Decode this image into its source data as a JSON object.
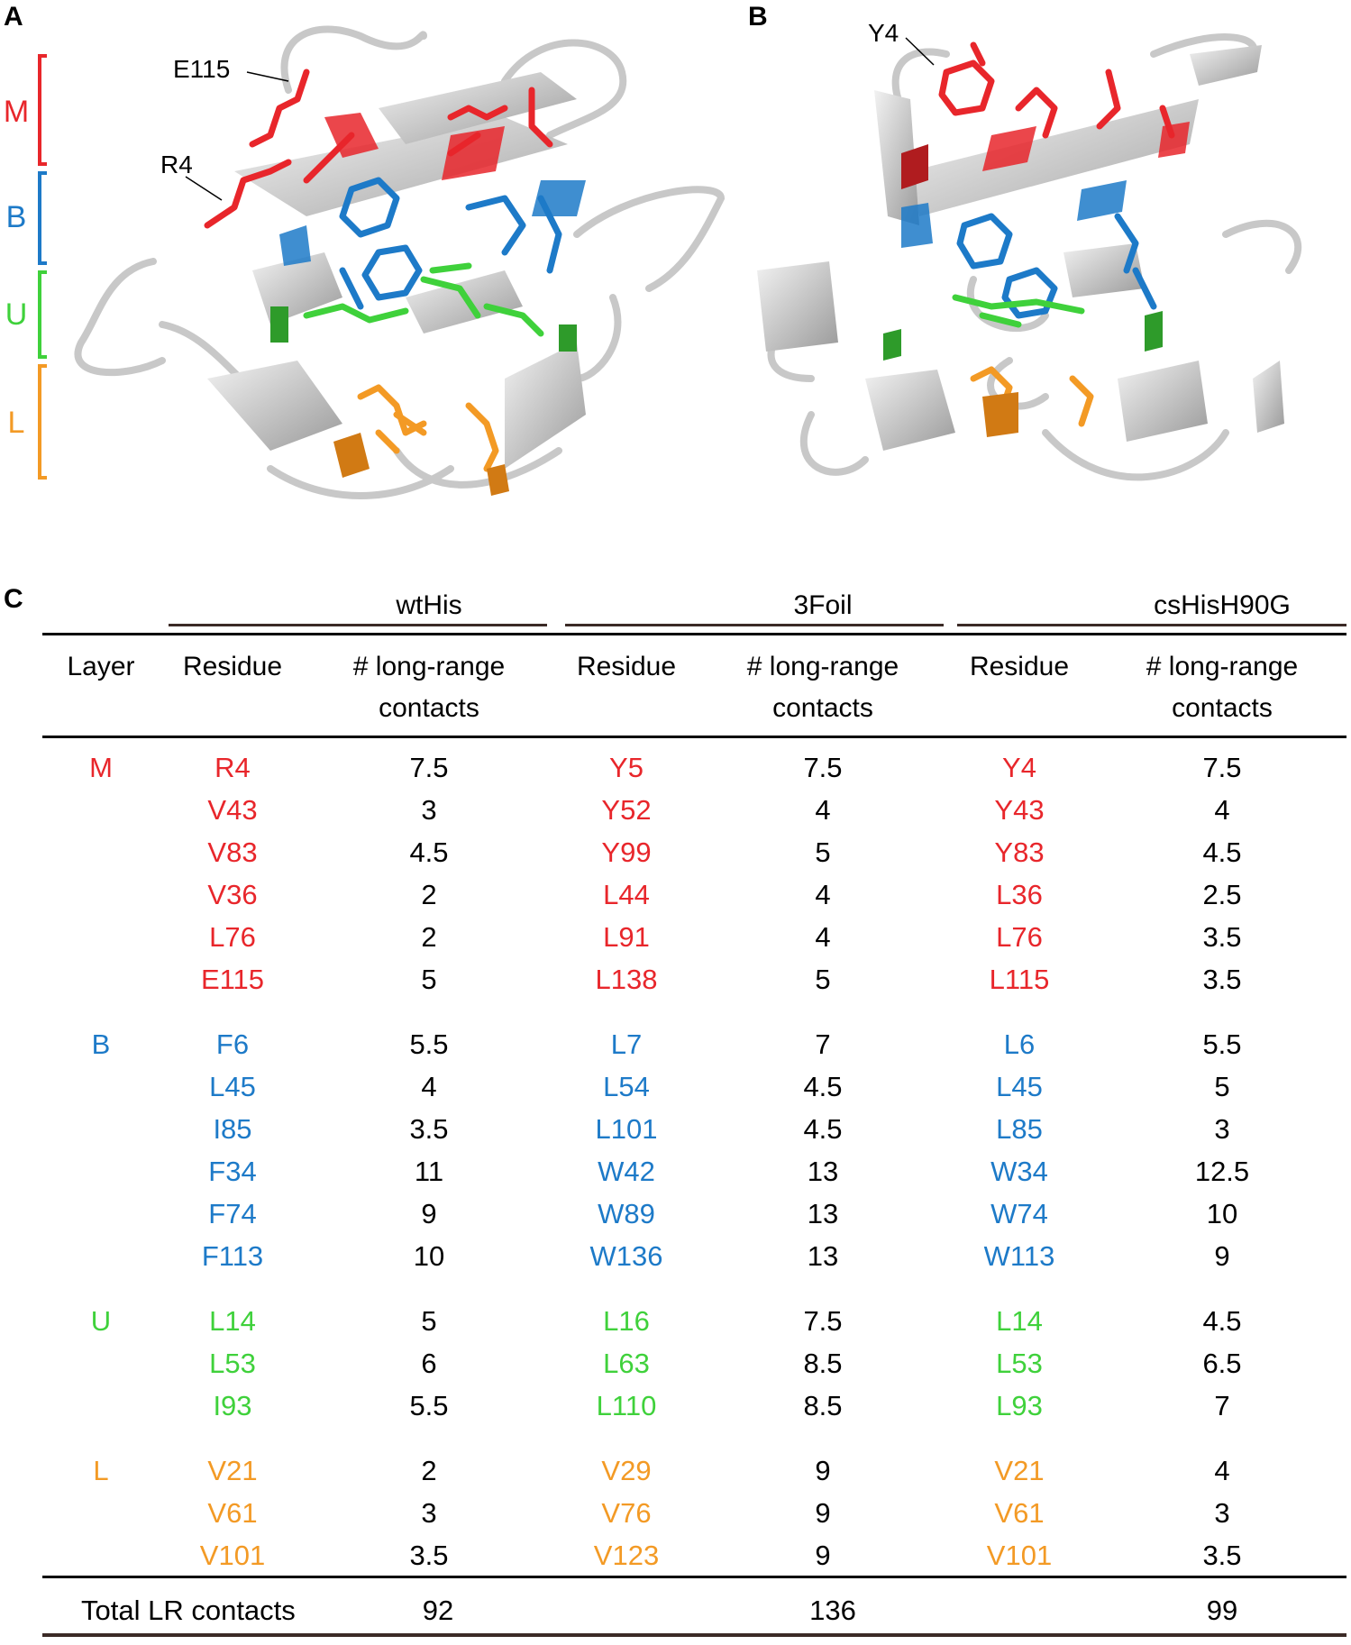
{
  "panels": {
    "A": "A",
    "B": "B",
    "C": "C"
  },
  "layer_colors": {
    "M": "#e8262b",
    "B": "#1d7ac8",
    "U": "#3fd13b",
    "L": "#f39a25"
  },
  "structure_A": {
    "bracket_labels": [
      "M",
      "B",
      "U",
      "L"
    ],
    "callouts": [
      "E115",
      "R4"
    ]
  },
  "structure_B": {
    "callouts": [
      "Y4"
    ]
  },
  "table": {
    "groups": [
      "wtHis",
      "3Foil",
      "csHisH90G"
    ],
    "headers": {
      "layer": "Layer",
      "residue": "Residue",
      "contacts_line1": "# long-range",
      "contacts_line2": "contacts"
    },
    "sections": [
      {
        "layer": "M",
        "rows": [
          [
            "R4",
            "7.5",
            "Y5",
            "7.5",
            "Y4",
            "7.5"
          ],
          [
            "V43",
            "3",
            "Y52",
            "4",
            "Y43",
            "4"
          ],
          [
            "V83",
            "4.5",
            "Y99",
            "5",
            "Y83",
            "4.5"
          ],
          [
            "V36",
            "2",
            "L44",
            "4",
            "L36",
            "2.5"
          ],
          [
            "L76",
            "2",
            "L91",
            "4",
            "L76",
            "3.5"
          ],
          [
            "E115",
            "5",
            "L138",
            "5",
            "L115",
            "3.5"
          ]
        ]
      },
      {
        "layer": "B",
        "rows": [
          [
            "F6",
            "5.5",
            "L7",
            "7",
            "L6",
            "5.5"
          ],
          [
            "L45",
            "4",
            "L54",
            "4.5",
            "L45",
            "5"
          ],
          [
            "I85",
            "3.5",
            "L101",
            "4.5",
            "L85",
            "3"
          ],
          [
            "F34",
            "11",
            "W42",
            "13",
            "W34",
            "12.5"
          ],
          [
            "F74",
            "9",
            "W89",
            "13",
            "W74",
            "10"
          ],
          [
            "F113",
            "10",
            "W136",
            "13",
            "W113",
            "9"
          ]
        ]
      },
      {
        "layer": "U",
        "rows": [
          [
            "L14",
            "5",
            "L16",
            "7.5",
            "L14",
            "4.5"
          ],
          [
            "L53",
            "6",
            "L63",
            "8.5",
            "L53",
            "6.5"
          ],
          [
            "I93",
            "5.5",
            "L110",
            "8.5",
            "L93",
            "7"
          ]
        ]
      },
      {
        "layer": "L",
        "rows": [
          [
            "V21",
            "2",
            "V29",
            "9",
            "V21",
            "4"
          ],
          [
            "V61",
            "3",
            "V76",
            "9",
            "V61",
            "3"
          ],
          [
            "V101",
            "3.5",
            "V123",
            "9",
            "V101",
            "3.5"
          ]
        ]
      }
    ],
    "total": {
      "label": "Total LR contacts",
      "values": [
        "92",
        "136",
        "99"
      ]
    }
  }
}
